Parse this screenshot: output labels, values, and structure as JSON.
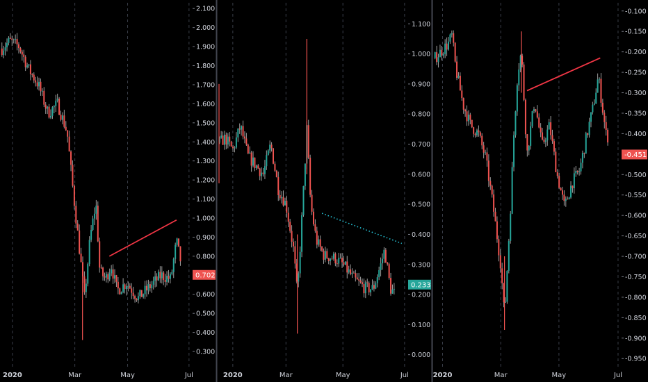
{
  "theme": {
    "background": "#000000",
    "up_color": "#26a69a",
    "down_color": "#ef5350",
    "wick_color": "#9e9e9e",
    "grid_color": "#2a2e39",
    "divider_color": "#434651",
    "axis_text_color": "#d1d4dc",
    "trendline_color": "#f23645",
    "dotted_trendline_color": "#26c6da"
  },
  "chart_data": [
    {
      "type": "candlestick",
      "x_ticks": [
        "2020",
        "Mar",
        "May",
        "Jul"
      ],
      "y_ticks": [
        "2.100",
        "2.000",
        "1.900",
        "1.800",
        "1.700",
        "1.600",
        "1.500",
        "1.400",
        "1.300",
        "1.200",
        "1.100",
        "1.000",
        "0.900",
        "0.800",
        "0.700",
        "0.600",
        "0.500",
        "0.400",
        "0.300"
      ],
      "ylim": [
        0.22,
        2.13
      ],
      "last_price": "0.702",
      "last_price_color": "#ef5350",
      "grid": "vertical dashed",
      "series_points": [
        [
          0,
          1.88
        ],
        [
          0.05,
          1.93
        ],
        [
          0.1,
          1.9
        ],
        [
          0.15,
          1.78
        ],
        [
          0.2,
          1.7
        ],
        [
          0.25,
          1.55
        ],
        [
          0.3,
          1.6
        ],
        [
          0.35,
          1.45
        ],
        [
          0.38,
          1.15
        ],
        [
          0.42,
          0.78
        ],
        [
          0.44,
          0.58
        ],
        [
          0.47,
          0.9
        ],
        [
          0.5,
          1.08
        ],
        [
          0.52,
          0.72
        ],
        [
          0.55,
          0.68
        ],
        [
          0.58,
          0.75
        ],
        [
          0.61,
          0.62
        ],
        [
          0.66,
          0.66
        ],
        [
          0.72,
          0.58
        ],
        [
          0.78,
          0.64
        ],
        [
          0.84,
          0.7
        ],
        [
          0.89,
          0.68
        ],
        [
          0.92,
          0.88
        ],
        [
          0.95,
          0.73
        ],
        [
          0.98,
          0.72
        ],
        [
          1.0,
          0.7
        ]
      ],
      "spikes": [
        [
          0.43,
          0.36,
          0.75
        ]
      ],
      "trendlines": [
        {
          "from": [
            0.57,
            0.8
          ],
          "to": [
            0.92,
            0.99
          ],
          "style": "solid"
        }
      ]
    },
    {
      "type": "candlestick",
      "x_ticks": [
        "2020",
        "Mar",
        "May",
        "Jul"
      ],
      "y_ticks": [
        "1.100",
        "1.000",
        "0.900",
        "0.800",
        "0.700",
        "0.600",
        "0.500",
        "0.400",
        "0.300",
        "0.200",
        "0.100",
        "0.000"
      ],
      "ylim": [
        -0.04,
        1.17
      ],
      "last_price": "0.233",
      "last_price_color": "#26a69a",
      "grid": "vertical dashed",
      "series_points": [
        [
          0,
          0.7
        ],
        [
          0.04,
          0.72
        ],
        [
          0.08,
          0.68
        ],
        [
          0.12,
          0.76
        ],
        [
          0.16,
          0.66
        ],
        [
          0.2,
          0.63
        ],
        [
          0.24,
          0.6
        ],
        [
          0.28,
          0.7
        ],
        [
          0.32,
          0.55
        ],
        [
          0.36,
          0.5
        ],
        [
          0.4,
          0.35
        ],
        [
          0.42,
          0.2
        ],
        [
          0.45,
          0.52
        ],
        [
          0.47,
          0.75
        ],
        [
          0.49,
          0.5
        ],
        [
          0.52,
          0.38
        ],
        [
          0.56,
          0.33
        ],
        [
          0.62,
          0.32
        ],
        [
          0.66,
          0.3
        ],
        [
          0.72,
          0.25
        ],
        [
          0.78,
          0.22
        ],
        [
          0.82,
          0.22
        ],
        [
          0.86,
          0.3
        ],
        [
          0.88,
          0.35
        ],
        [
          0.91,
          0.22
        ],
        [
          0.95,
          0.19
        ],
        [
          1.0,
          0.23
        ]
      ],
      "spikes": [
        [
          0.0,
          0.57,
          0.9
        ],
        [
          0.47,
          0.6,
          1.05
        ],
        [
          0.42,
          0.07,
          0.4
        ]
      ],
      "trendlines": [
        {
          "from": [
            0.55,
            0.47
          ],
          "to": [
            0.97,
            0.37
          ],
          "style": "dotted"
        }
      ]
    },
    {
      "type": "candlestick",
      "x_ticks": [
        "2020",
        "Mar",
        "May",
        "Jul"
      ],
      "y_ticks": [
        "-0.100",
        "-0.150",
        "-0.200",
        "-0.250",
        "-0.300",
        "-0.350",
        "-0.400",
        "-0.450",
        "-0.500",
        "-0.550",
        "-0.600",
        "-0.650",
        "-0.700",
        "-0.750",
        "-0.800",
        "-0.850",
        "-0.900",
        "-0.950"
      ],
      "ylim": [
        -0.97,
        -0.08
      ],
      "last_price": "-0.451",
      "last_price_color": "#ef5350",
      "grid": "vertical dashed",
      "series_points": [
        [
          0,
          -0.22
        ],
        [
          0.04,
          -0.2
        ],
        [
          0.08,
          -0.18
        ],
        [
          0.1,
          -0.16
        ],
        [
          0.12,
          -0.24
        ],
        [
          0.16,
          -0.33
        ],
        [
          0.2,
          -0.38
        ],
        [
          0.24,
          -0.4
        ],
        [
          0.28,
          -0.46
        ],
        [
          0.32,
          -0.58
        ],
        [
          0.36,
          -0.72
        ],
        [
          0.38,
          -0.85
        ],
        [
          0.41,
          -0.6
        ],
        [
          0.43,
          -0.4
        ],
        [
          0.45,
          -0.25
        ],
        [
          0.47,
          -0.2
        ],
        [
          0.5,
          -0.45
        ],
        [
          0.54,
          -0.32
        ],
        [
          0.58,
          -0.43
        ],
        [
          0.62,
          -0.38
        ],
        [
          0.66,
          -0.5
        ],
        [
          0.7,
          -0.58
        ],
        [
          0.74,
          -0.52
        ],
        [
          0.78,
          -0.49
        ],
        [
          0.82,
          -0.4
        ],
        [
          0.85,
          -0.34
        ],
        [
          0.88,
          -0.26
        ],
        [
          0.92,
          -0.4
        ],
        [
          0.96,
          -0.43
        ],
        [
          1.0,
          -0.45
        ]
      ],
      "spikes": [
        [
          0.38,
          -0.88,
          -0.7
        ],
        [
          0.47,
          -0.3,
          -0.15
        ]
      ],
      "trendlines": [
        {
          "from": [
            0.5,
            -0.295
          ],
          "to": [
            0.89,
            -0.215
          ],
          "style": "solid"
        }
      ]
    }
  ]
}
